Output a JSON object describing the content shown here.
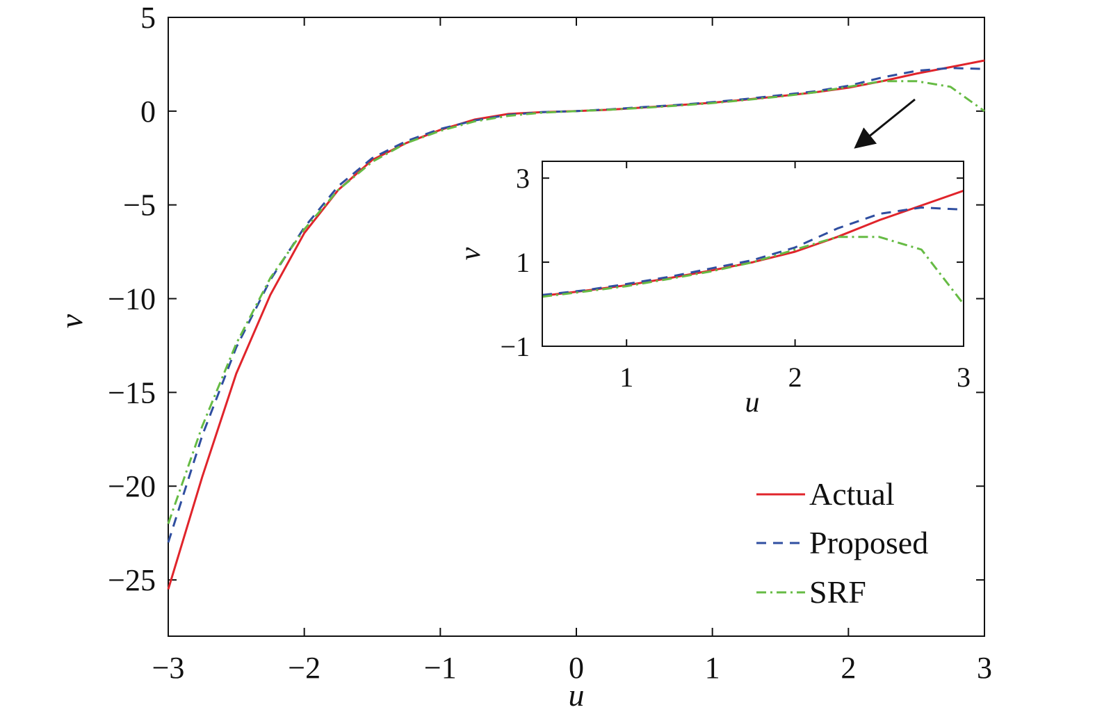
{
  "chart_data": [
    {
      "type": "line",
      "xlabel": "u",
      "ylabel": "v",
      "xlim": [
        -3,
        3
      ],
      "ylim": [
        -28,
        5
      ],
      "xticks": [
        -3,
        -2,
        -1,
        0,
        1,
        2,
        3
      ],
      "yticks": [
        -25,
        -20,
        -15,
        -10,
        -5,
        0,
        5
      ],
      "xtick_labels": [
        "−3",
        "−2",
        "−1",
        "0",
        "1",
        "2",
        "3"
      ],
      "ytick_labels": [
        "−25",
        "−20",
        "−15",
        "−10",
        "−5",
        "0",
        "5"
      ],
      "grid": false,
      "legend_position": "bottom-right",
      "series": [
        {
          "name": "Actual",
          "color": "#e0242b",
          "style": "solid",
          "x": [
            -3.0,
            -2.75,
            -2.5,
            -2.25,
            -2.0,
            -1.75,
            -1.5,
            -1.25,
            -1.0,
            -0.75,
            -0.5,
            -0.25,
            0.0,
            0.25,
            0.5,
            0.75,
            1.0,
            1.25,
            1.5,
            1.75,
            2.0,
            2.25,
            2.5,
            2.75,
            3.0
          ],
          "y": [
            -25.5,
            -19.5,
            -14.0,
            -9.8,
            -6.5,
            -4.2,
            -2.6,
            -1.7,
            -1.0,
            -0.45,
            -0.15,
            -0.05,
            0.0,
            0.08,
            0.2,
            0.32,
            0.45,
            0.62,
            0.8,
            1.0,
            1.25,
            1.6,
            2.0,
            2.35,
            2.7
          ]
        },
        {
          "name": "Proposed",
          "color": "#2f4ea0",
          "style": "dashed",
          "x": [
            -3.0,
            -2.75,
            -2.5,
            -2.25,
            -2.0,
            -1.75,
            -1.5,
            -1.25,
            -1.0,
            -0.75,
            -0.5,
            -0.25,
            0.0,
            0.25,
            0.5,
            0.75,
            1.0,
            1.25,
            1.5,
            1.75,
            2.0,
            2.25,
            2.5,
            2.75,
            3.0
          ],
          "y": [
            -23.0,
            -17.3,
            -12.6,
            -9.0,
            -6.2,
            -4.0,
            -2.5,
            -1.6,
            -0.95,
            -0.5,
            -0.2,
            -0.05,
            0.0,
            0.1,
            0.22,
            0.33,
            0.48,
            0.65,
            0.85,
            1.05,
            1.35,
            1.8,
            2.15,
            2.3,
            2.25
          ]
        },
        {
          "name": "SRF",
          "color": "#66bb44",
          "style": "dashdot",
          "x": [
            -3.0,
            -2.75,
            -2.5,
            -2.25,
            -2.0,
            -1.75,
            -1.5,
            -1.25,
            -1.0,
            -0.75,
            -0.5,
            -0.25,
            0.0,
            0.25,
            0.5,
            0.75,
            1.0,
            1.25,
            1.5,
            1.75,
            2.0,
            2.25,
            2.5,
            2.75,
            3.0
          ],
          "y": [
            -22.0,
            -16.8,
            -12.4,
            -8.9,
            -6.3,
            -4.2,
            -2.7,
            -1.7,
            -1.05,
            -0.55,
            -0.25,
            -0.08,
            0.0,
            0.08,
            0.18,
            0.3,
            0.43,
            0.6,
            0.78,
            1.0,
            1.3,
            1.6,
            1.6,
            1.3,
            0.0
          ]
        }
      ]
    },
    {
      "type": "line",
      "xlabel": "u",
      "ylabel": "v",
      "xlim": [
        0.5,
        3
      ],
      "ylim": [
        -1,
        3.4
      ],
      "xticks": [
        1,
        2,
        3
      ],
      "yticks": [
        -1,
        1,
        3
      ],
      "xtick_labels": [
        "1",
        "2",
        "3"
      ],
      "ytick_labels": [
        "−1",
        "1",
        "3"
      ],
      "grid": false,
      "series": [
        {
          "name": "Actual",
          "color": "#e0242b",
          "style": "solid",
          "x": [
            0.5,
            0.75,
            1.0,
            1.25,
            1.5,
            1.75,
            2.0,
            2.25,
            2.5,
            2.75,
            3.0
          ],
          "y": [
            0.2,
            0.32,
            0.45,
            0.62,
            0.8,
            1.0,
            1.25,
            1.6,
            2.0,
            2.35,
            2.7
          ]
        },
        {
          "name": "Proposed",
          "color": "#2f4ea0",
          "style": "dashed",
          "x": [
            0.5,
            0.75,
            1.0,
            1.25,
            1.5,
            1.75,
            2.0,
            2.25,
            2.5,
            2.75,
            3.0
          ],
          "y": [
            0.22,
            0.33,
            0.48,
            0.65,
            0.85,
            1.05,
            1.35,
            1.8,
            2.15,
            2.3,
            2.25
          ]
        },
        {
          "name": "SRF",
          "color": "#66bb44",
          "style": "dashdot",
          "x": [
            0.5,
            0.75,
            1.0,
            1.25,
            1.5,
            1.75,
            2.0,
            2.25,
            2.5,
            2.75,
            3.0
          ],
          "y": [
            0.18,
            0.3,
            0.43,
            0.6,
            0.78,
            1.0,
            1.3,
            1.6,
            1.6,
            1.3,
            0.0
          ]
        }
      ]
    }
  ]
}
